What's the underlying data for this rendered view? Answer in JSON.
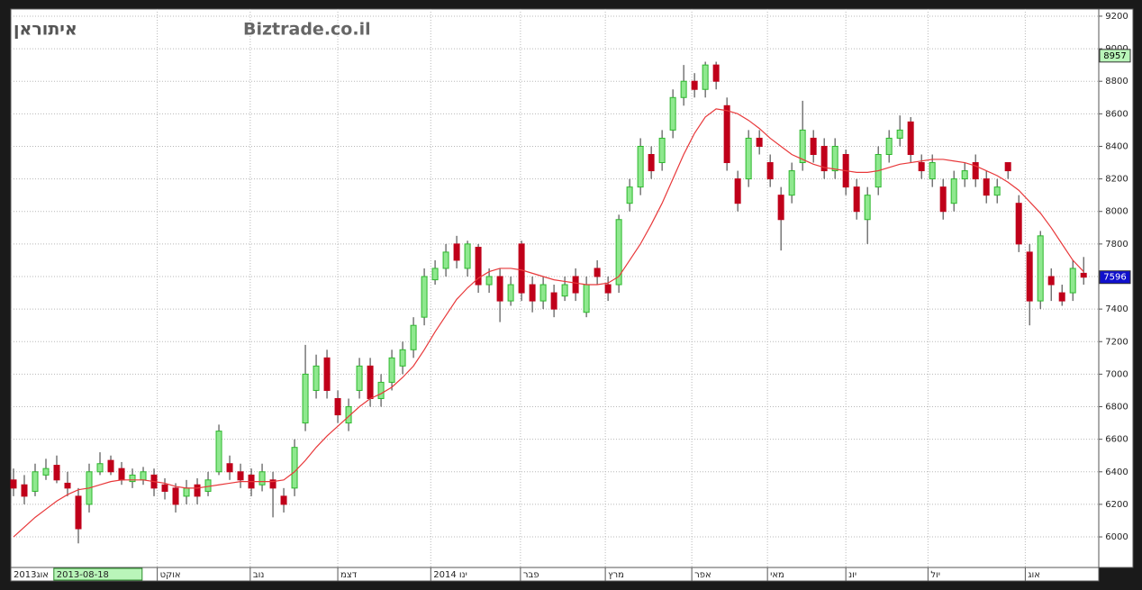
{
  "chart_data": {
    "type": "candlestick",
    "title": "איתוראן",
    "watermark": "Biztrade.co.il",
    "up_color": "#2db82d",
    "down_color": "#c0001a",
    "open": [
      6350,
      6320,
      6280,
      6380,
      6440,
      6330,
      6250,
      6200,
      6400,
      6470,
      6420,
      6340,
      6350,
      6380,
      6320,
      6300,
      6250,
      6320,
      6280,
      6400,
      6450,
      6400,
      6380,
      6320,
      6350,
      6250,
      6300,
      6700,
      6900,
      7100,
      6850,
      6700,
      6900,
      7050,
      6850,
      6950,
      7050,
      7150,
      7350,
      7580,
      7650,
      7800,
      7650,
      7780,
      7550,
      7600,
      7450,
      7800,
      7550,
      7450,
      7500,
      7480,
      7600,
      7380,
      7650,
      7550,
      7550,
      8050,
      8150,
      8350,
      8300,
      8500,
      8700,
      8800,
      8750,
      8900,
      8650,
      8200,
      8200,
      8450,
      8300,
      8100,
      8100,
      8300,
      8450,
      8400,
      8250,
      8350,
      8150,
      7950,
      8150,
      8350,
      8450,
      8550,
      8300,
      8200,
      8150,
      8050,
      8200,
      8300,
      8200,
      8100,
      8300,
      8050,
      7750,
      7450,
      7600,
      7500,
      7500,
      7620
    ],
    "high": [
      6420,
      6380,
      6450,
      6480,
      6500,
      6400,
      6300,
      6450,
      6520,
      6500,
      6460,
      6420,
      6430,
      6420,
      6360,
      6330,
      6350,
      6360,
      6400,
      6690,
      6500,
      6450,
      6420,
      6450,
      6400,
      6300,
      6600,
      7180,
      7120,
      7150,
      6900,
      6850,
      7100,
      7100,
      7000,
      7150,
      7200,
      7350,
      7650,
      7700,
      7800,
      7850,
      7820,
      7800,
      7650,
      7650,
      7600,
      7820,
      7600,
      7600,
      7550,
      7600,
      7650,
      7600,
      7700,
      7600,
      7980,
      8200,
      8450,
      8400,
      8500,
      8750,
      8900,
      8850,
      8920,
      8920,
      8700,
      8250,
      8500,
      8500,
      8350,
      8150,
      8300,
      8680,
      8500,
      8450,
      8450,
      8380,
      8200,
      8150,
      8400,
      8500,
      8590,
      8580,
      8350,
      8350,
      8200,
      8250,
      8300,
      8350,
      8250,
      8200,
      8300,
      8100,
      7800,
      7880,
      7650,
      7550,
      7700,
      7720
    ],
    "low": [
      6250,
      6200,
      6250,
      6350,
      6330,
      6250,
      5960,
      6150,
      6380,
      6380,
      6320,
      6300,
      6320,
      6250,
      6230,
      6150,
      6200,
      6200,
      6250,
      6380,
      6350,
      6300,
      6250,
      6280,
      6120,
      6150,
      6250,
      6650,
      6850,
      6850,
      6700,
      6650,
      6850,
      6800,
      6800,
      6900,
      7000,
      7100,
      7300,
      7550,
      7600,
      7650,
      7600,
      7500,
      7500,
      7320,
      7420,
      7450,
      7380,
      7400,
      7350,
      7450,
      7450,
      7350,
      7550,
      7450,
      7500,
      8000,
      8100,
      8200,
      8250,
      8450,
      8650,
      8700,
      8700,
      8750,
      8250,
      8000,
      8150,
      8350,
      8150,
      7760,
      8050,
      8250,
      8300,
      8200,
      8200,
      8100,
      7950,
      7800,
      8100,
      8300,
      8400,
      8300,
      8200,
      8150,
      7950,
      8000,
      8150,
      8150,
      8050,
      8050,
      8200,
      7750,
      7300,
      7400,
      7450,
      7420,
      7450,
      7550
    ],
    "close": [
      6300,
      6250,
      6400,
      6420,
      6350,
      6300,
      6050,
      6400,
      6450,
      6400,
      6350,
      6380,
      6400,
      6300,
      6280,
      6200,
      6300,
      6250,
      6350,
      6650,
      6400,
      6350,
      6300,
      6400,
      6300,
      6200,
      6550,
      7000,
      7050,
      6900,
      6750,
      6800,
      7050,
      6850,
      6950,
      7100,
      7150,
      7300,
      7600,
      7650,
      7750,
      7700,
      7800,
      7550,
      7600,
      7450,
      7550,
      7500,
      7450,
      7550,
      7400,
      7550,
      7500,
      7550,
      7600,
      7500,
      7950,
      8150,
      8400,
      8250,
      8450,
      8700,
      8800,
      8750,
      8900,
      8800,
      8300,
      8050,
      8450,
      8400,
      8200,
      7950,
      8250,
      8500,
      8350,
      8250,
      8400,
      8150,
      8000,
      8100,
      8350,
      8450,
      8500,
      8350,
      8250,
      8300,
      8000,
      8200,
      8250,
      8200,
      8100,
      8150,
      8250,
      7800,
      7450,
      7850,
      7550,
      7450,
      7650,
      7596
    ],
    "moving_average": {
      "color": "#e8383a",
      "values": [
        6000,
        6060,
        6120,
        6170,
        6220,
        6260,
        6290,
        6300,
        6320,
        6340,
        6350,
        6350,
        6350,
        6340,
        6330,
        6310,
        6300,
        6300,
        6310,
        6320,
        6330,
        6340,
        6340,
        6340,
        6340,
        6350,
        6400,
        6470,
        6550,
        6620,
        6680,
        6740,
        6800,
        6850,
        6880,
        6920,
        6980,
        7050,
        7150,
        7260,
        7360,
        7460,
        7530,
        7590,
        7630,
        7650,
        7650,
        7640,
        7620,
        7600,
        7580,
        7570,
        7560,
        7550,
        7550,
        7560,
        7600,
        7700,
        7800,
        7920,
        8050,
        8200,
        8350,
        8480,
        8580,
        8630,
        8620,
        8600,
        8560,
        8510,
        8450,
        8400,
        8350,
        8320,
        8290,
        8270,
        8260,
        8250,
        8240,
        8240,
        8250,
        8270,
        8290,
        8300,
        8310,
        8320,
        8320,
        8310,
        8300,
        8280,
        8250,
        8220,
        8180,
        8130,
        8060,
        7990,
        7900,
        7800,
        7700,
        7630
      ]
    },
    "xlim": [
      -0.25,
      100.4
    ],
    "xticks": [
      {
        "value": -0.25,
        "label": "אוג2013"
      },
      {
        "value": 13.3,
        "label": "אוקט"
      },
      {
        "value": 21.9,
        "label": "נוב"
      },
      {
        "value": 30,
        "label": "דצמ"
      },
      {
        "value": 38.6,
        "label": "2014 ינו"
      },
      {
        "value": 46.9,
        "label": "פבר"
      },
      {
        "value": 54.75,
        "label": "מרץ"
      },
      {
        "value": 62.75,
        "label": "אפר"
      },
      {
        "value": 69.75,
        "label": "מאי"
      },
      {
        "value": 77,
        "label": "יונ"
      },
      {
        "value": 84.6,
        "label": "יול"
      },
      {
        "value": 93.6,
        "label": "אוג"
      }
    ],
    "cursor": {
      "value": 3.9,
      "label": "2013-08-18"
    },
    "ylim": [
      5812,
      9244
    ],
    "yticks": [
      6000,
      6200,
      6400,
      6600,
      6800,
      7000,
      7200,
      7400,
      7600,
      7800,
      8000,
      8200,
      8400,
      8600,
      8800,
      9000,
      9200
    ],
    "high_marker": 8957,
    "last_marker": 7596,
    "grid": true
  }
}
